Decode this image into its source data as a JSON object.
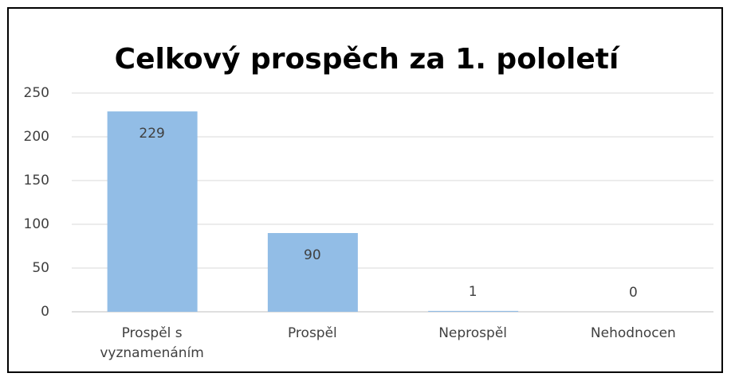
{
  "chart_data": {
    "type": "bar",
    "title": "Celkový prospěch za 1. pololetí",
    "categories": [
      "Prospěl s vyznamenáním",
      "Prospěl",
      "Neprospěl",
      "Nehodnocen"
    ],
    "values": [
      229,
      90,
      1,
      0
    ],
    "color": "#92bde6",
    "ylim": [
      0,
      250
    ],
    "yticks": [
      0,
      50,
      100,
      150,
      200,
      250
    ],
    "grid": true
  }
}
